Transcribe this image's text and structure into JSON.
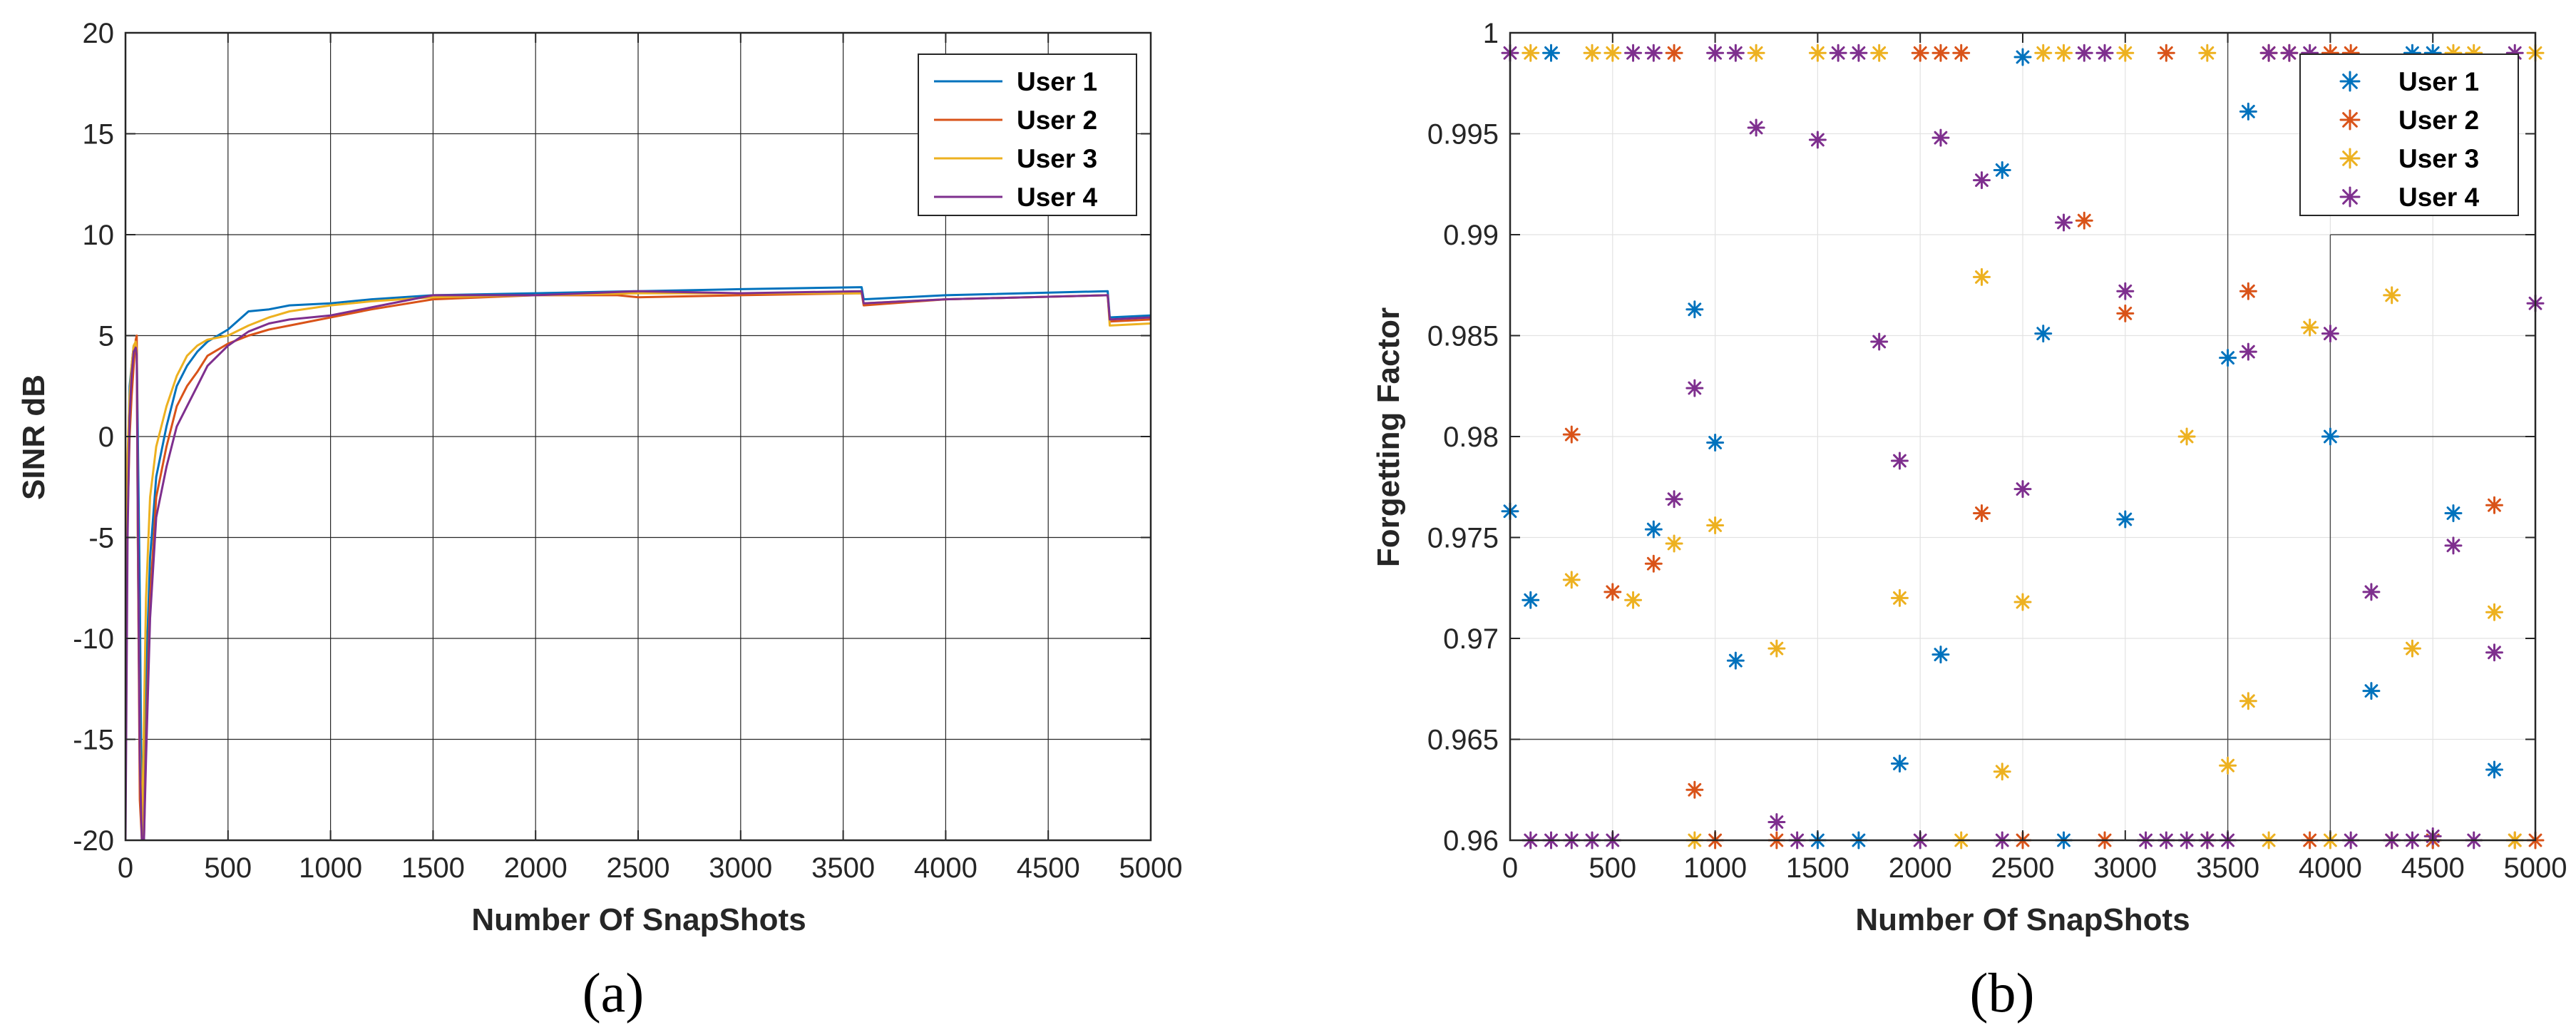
{
  "chart_data": [
    {
      "id": "a",
      "type": "line",
      "panel_label": "(a)",
      "xlabel": "Number Of SnapShots",
      "ylabel": "SINR dB",
      "xlim": [
        0,
        5000
      ],
      "ylim": [
        -20,
        20
      ],
      "xticks": [
        0,
        500,
        1000,
        1500,
        2000,
        2500,
        3000,
        3500,
        4000,
        4500,
        5000
      ],
      "yticks": [
        -20,
        -15,
        -10,
        -5,
        0,
        5,
        10,
        15,
        20
      ],
      "grid": true,
      "legend_position": "top-right",
      "series": [
        {
          "name": "User 1",
          "color": "#0072BD",
          "x": [
            0,
            10,
            20,
            30,
            40,
            55,
            70,
            80,
            90,
            100,
            120,
            150,
            200,
            250,
            300,
            350,
            400,
            500,
            600,
            700,
            800,
            1000,
            1200,
            1500,
            2000,
            2500,
            3000,
            3590,
            3600,
            4000,
            4790,
            4800,
            5000
          ],
          "y": [
            -10,
            -2,
            2.5,
            3.5,
            4.5,
            4.3,
            -8,
            -20,
            -18,
            -12,
            -6,
            -2,
            0.5,
            2.5,
            3.5,
            4.2,
            4.7,
            5.3,
            6.2,
            6.3,
            6.5,
            6.6,
            6.8,
            7.0,
            7.1,
            7.2,
            7.3,
            7.4,
            6.8,
            7.0,
            7.2,
            5.9,
            6.0
          ]
        },
        {
          "name": "User 2",
          "color": "#D95319",
          "x": [
            0,
            10,
            20,
            30,
            40,
            50,
            55,
            60,
            70,
            80,
            90,
            100,
            120,
            150,
            200,
            250,
            300,
            350,
            400,
            500,
            600,
            700,
            800,
            1000,
            1200,
            1500,
            2000,
            2400,
            2500,
            3000,
            3590,
            3600,
            4000,
            4790,
            4800,
            5000
          ],
          "y": [
            -12,
            -4,
            0,
            2,
            3.5,
            4.8,
            5.0,
            -5,
            -18,
            -20,
            -20,
            -15,
            -8,
            -3,
            -0.5,
            1.5,
            2.5,
            3.2,
            4.0,
            4.6,
            5.0,
            5.3,
            5.5,
            5.9,
            6.3,
            6.8,
            7.0,
            7.0,
            6.9,
            7.0,
            7.1,
            6.5,
            6.8,
            7.0,
            5.7,
            5.8
          ]
        },
        {
          "name": "User 3",
          "color": "#EDB120",
          "x": [
            0,
            10,
            20,
            30,
            40,
            50,
            55,
            60,
            70,
            80,
            90,
            100,
            120,
            150,
            200,
            250,
            300,
            350,
            400,
            500,
            600,
            700,
            800,
            1000,
            1200,
            1500,
            2000,
            2500,
            3000,
            3590,
            3600,
            4000,
            4790,
            4800,
            5000
          ],
          "y": [
            -8,
            -1,
            2,
            3.5,
            4.5,
            4.7,
            4.0,
            -5,
            -15,
            -20,
            -14,
            -8,
            -3,
            -0.5,
            1.5,
            3.0,
            4.0,
            4.5,
            4.8,
            5.0,
            5.5,
            5.9,
            6.2,
            6.5,
            6.7,
            6.9,
            7.0,
            7.1,
            7.1,
            7.1,
            6.6,
            6.8,
            7.0,
            5.5,
            5.6
          ]
        },
        {
          "name": "User 4",
          "color": "#7E2F8E",
          "x": [
            0,
            10,
            20,
            30,
            40,
            50,
            55,
            60,
            70,
            80,
            90,
            100,
            120,
            150,
            200,
            250,
            300,
            350,
            400,
            500,
            600,
            700,
            800,
            1000,
            1200,
            1500,
            2000,
            2500,
            3000,
            3590,
            3600,
            4000,
            4790,
            4800,
            5000
          ],
          "y": [
            -20,
            -5,
            1,
            3,
            4.2,
            4.4,
            4.0,
            -4,
            -16,
            -20,
            -20,
            -16,
            -9,
            -4,
            -1.5,
            0.5,
            1.5,
            2.5,
            3.5,
            4.5,
            5.2,
            5.6,
            5.8,
            6.0,
            6.4,
            7.0,
            7.0,
            7.2,
            7.1,
            7.2,
            6.6,
            6.8,
            7.0,
            5.8,
            5.9
          ]
        }
      ]
    },
    {
      "id": "b",
      "type": "scatter",
      "marker": "asterisk",
      "panel_label": "(b)",
      "xlabel": "Number Of SnapShots",
      "ylabel": "Forgetting Factor",
      "xlim": [
        0,
        5000
      ],
      "ylim": [
        0.96,
        1
      ],
      "xticks": [
        0,
        500,
        1000,
        1500,
        2000,
        2500,
        3000,
        3500,
        4000,
        4500,
        5000
      ],
      "yticks": [
        0.96,
        0.965,
        0.97,
        0.975,
        0.98,
        0.985,
        0.99,
        0.995,
        1
      ],
      "ytick_labels": [
        "0.96",
        "0.965",
        "0.97",
        "0.975",
        "0.98",
        "0.985",
        "0.99",
        "0.995",
        "1"
      ],
      "grid": true,
      "legend_position": "top-right",
      "series": [
        {
          "name": "User 1",
          "color": "#0072BD",
          "points": [
            [
              0,
              0.9763
            ],
            [
              100,
              0.9719
            ],
            [
              200,
              0.999
            ],
            [
              700,
              0.9754
            ],
            [
              900,
              0.9863
            ],
            [
              1000,
              0.9797
            ],
            [
              1100,
              0.9689
            ],
            [
              1500,
              0.96
            ],
            [
              1700,
              0.96
            ],
            [
              1900,
              0.9638
            ],
            [
              2100,
              0.9692
            ],
            [
              2400,
              0.9932
            ],
            [
              2500,
              0.9988
            ],
            [
              2600,
              0.9851
            ],
            [
              2700,
              0.96
            ],
            [
              3000,
              0.9759
            ],
            [
              3500,
              0.9839
            ],
            [
              3600,
              0.9961
            ],
            [
              4000,
              0.98
            ],
            [
              4200,
              0.9674
            ],
            [
              4400,
              0.999
            ],
            [
              4500,
              0.999
            ],
            [
              4500,
              0.96
            ],
            [
              4600,
              0.9762
            ],
            [
              4800,
              0.9635
            ]
          ]
        },
        {
          "name": "User 2",
          "color": "#D95319",
          "points": [
            [
              300,
              0.9801
            ],
            [
              500,
              0.9723
            ],
            [
              700,
              0.9737
            ],
            [
              800,
              0.999
            ],
            [
              900,
              0.9625
            ],
            [
              1000,
              0.96
            ],
            [
              1300,
              0.96
            ],
            [
              2000,
              0.999
            ],
            [
              2100,
              0.999
            ],
            [
              2200,
              0.999
            ],
            [
              2300,
              0.9762
            ],
            [
              2500,
              0.96
            ],
            [
              2800,
              0.9907
            ],
            [
              2900,
              0.96
            ],
            [
              3000,
              0.9861
            ],
            [
              3200,
              0.999
            ],
            [
              3400,
              0.96
            ],
            [
              3600,
              0.9872
            ],
            [
              3700,
              0.999
            ],
            [
              3800,
              0.999
            ],
            [
              3900,
              0.96
            ],
            [
              4000,
              0.999
            ],
            [
              4100,
              0.999
            ],
            [
              4300,
              0.96
            ],
            [
              4500,
              0.96
            ],
            [
              4800,
              0.9766
            ],
            [
              4900,
              0.96
            ],
            [
              5000,
              0.96
            ]
          ]
        },
        {
          "name": "User 3",
          "color": "#EDB120",
          "points": [
            [
              100,
              0.999
            ],
            [
              300,
              0.9729
            ],
            [
              400,
              0.999
            ],
            [
              500,
              0.999
            ],
            [
              600,
              0.9719
            ],
            [
              800,
              0.9747
            ],
            [
              900,
              0.96
            ],
            [
              1000,
              0.9756
            ],
            [
              1200,
              0.999
            ],
            [
              1300,
              0.9695
            ],
            [
              1500,
              0.999
            ],
            [
              1800,
              0.999
            ],
            [
              1900,
              0.972
            ],
            [
              2200,
              0.96
            ],
            [
              2300,
              0.9879
            ],
            [
              2400,
              0.9634
            ],
            [
              2500,
              0.9718
            ],
            [
              2600,
              0.999
            ],
            [
              2700,
              0.999
            ],
            [
              3000,
              0.999
            ],
            [
              3300,
              0.98
            ],
            [
              3400,
              0.999
            ],
            [
              3500,
              0.9637
            ],
            [
              3600,
              0.9669
            ],
            [
              3700,
              0.96
            ],
            [
              3900,
              0.9854
            ],
            [
              4000,
              0.96
            ],
            [
              4300,
              0.987
            ],
            [
              4400,
              0.9695
            ],
            [
              4600,
              0.999
            ],
            [
              4700,
              0.999
            ],
            [
              4800,
              0.9713
            ],
            [
              4900,
              0.96
            ],
            [
              5000,
              0.999
            ]
          ]
        },
        {
          "name": "User 4",
          "color": "#7E2F8E",
          "points": [
            [
              0,
              0.999
            ],
            [
              100,
              0.96
            ],
            [
              200,
              0.96
            ],
            [
              300,
              0.96
            ],
            [
              400,
              0.96
            ],
            [
              500,
              0.96
            ],
            [
              600,
              0.999
            ],
            [
              700,
              0.999
            ],
            [
              800,
              0.9769
            ],
            [
              900,
              0.9824
            ],
            [
              1000,
              0.999
            ],
            [
              1100,
              0.999
            ],
            [
              1200,
              0.9953
            ],
            [
              1300,
              0.9609
            ],
            [
              1400,
              0.96
            ],
            [
              1500,
              0.9947
            ],
            [
              1600,
              0.999
            ],
            [
              1700,
              0.999
            ],
            [
              1800,
              0.9847
            ],
            [
              1900,
              0.9788
            ],
            [
              2000,
              0.96
            ],
            [
              2100,
              0.9948
            ],
            [
              2300,
              0.9927
            ],
            [
              2400,
              0.96
            ],
            [
              2500,
              0.9774
            ],
            [
              2700,
              0.9906
            ],
            [
              2800,
              0.999
            ],
            [
              2900,
              0.999
            ],
            [
              3000,
              0.9872
            ],
            [
              3100,
              0.96
            ],
            [
              3200,
              0.96
            ],
            [
              3300,
              0.96
            ],
            [
              3400,
              0.96
            ],
            [
              3500,
              0.96
            ],
            [
              3600,
              0.9842
            ],
            [
              3700,
              0.999
            ],
            [
              3800,
              0.999
            ],
            [
              3900,
              0.999
            ],
            [
              4000,
              0.9851
            ],
            [
              4100,
              0.96
            ],
            [
              4200,
              0.9723
            ],
            [
              4300,
              0.96
            ],
            [
              4400,
              0.96
            ],
            [
              4500,
              0.9602
            ],
            [
              4600,
              0.9746
            ],
            [
              4700,
              0.96
            ],
            [
              4800,
              0.9693
            ],
            [
              4900,
              0.999
            ],
            [
              5000,
              0.9866
            ]
          ]
        }
      ],
      "extra_grid_lines": [
        {
          "orientation": "vertical",
          "at": 3500,
          "from": 0.96,
          "to": 1
        },
        {
          "orientation": "vertical",
          "at": 4000,
          "from": 0.96,
          "to": 0.99
        },
        {
          "orientation": "horizontal",
          "at": 0.965,
          "from": 0,
          "to": 4000
        },
        {
          "orientation": "horizontal",
          "at": 0.98,
          "from": 4000,
          "to": 5000
        },
        {
          "orientation": "horizontal",
          "at": 0.99,
          "from": 4000,
          "to": 5000
        }
      ]
    }
  ]
}
